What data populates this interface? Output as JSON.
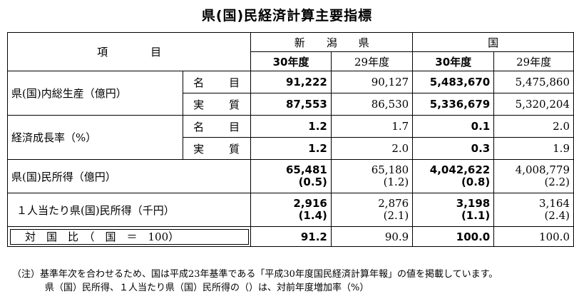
{
  "title": "県(国)民経済計算主要指標",
  "header": {
    "item_label": "項　　　　目",
    "region_niigata": "新　　潟　　県",
    "region_kuni": "国",
    "col_30": "30年度",
    "col_29": "29年度"
  },
  "rows": {
    "gdp": {
      "label": "県(国)内総生産（億円）",
      "nominal_label": "名　目",
      "real_label": "実　質",
      "nominal": [
        "91,222",
        "90,127",
        "5,483,670",
        "5,475,860"
      ],
      "real": [
        "87,553",
        "86,530",
        "5,336,679",
        "5,320,204"
      ]
    },
    "growth": {
      "label": "経済成長率（%）",
      "nominal_label": "名　目",
      "real_label": "実　質",
      "nominal": [
        "1.2",
        "1.7",
        "0.1",
        "2.0"
      ],
      "real": [
        "1.2",
        "2.0",
        "0.3",
        "1.9"
      ]
    },
    "income": {
      "label": "県(国)民所得（億円）",
      "values": [
        "65,481",
        "65,180",
        "4,042,622",
        "4,008,779"
      ],
      "rates": [
        "(0.5)",
        "(1.2)",
        "(0.8)",
        "(2.2)"
      ]
    },
    "per_capita": {
      "label": "１人当たり県(国)民所得（千円）",
      "values": [
        "2,916",
        "2,876",
        "3,198",
        "3,164"
      ],
      "rates": [
        "(1.4)",
        "(2.1)",
        "(1.1)",
        "(2.4)"
      ]
    },
    "ratio": {
      "label": "対　国　比　（　国　＝　100）",
      "values": [
        "91.2",
        "90.9",
        "100.0",
        "100.0"
      ]
    }
  },
  "notes": {
    "line1": "（注）基準年次を合わせるため、国は平成23年基準である「平成30年度国民経済計算年報」の値を掲載しています。",
    "line2": "県（国）民所得、１人当たり県（国）民所得の（）は、対前年度増加率（%）"
  }
}
